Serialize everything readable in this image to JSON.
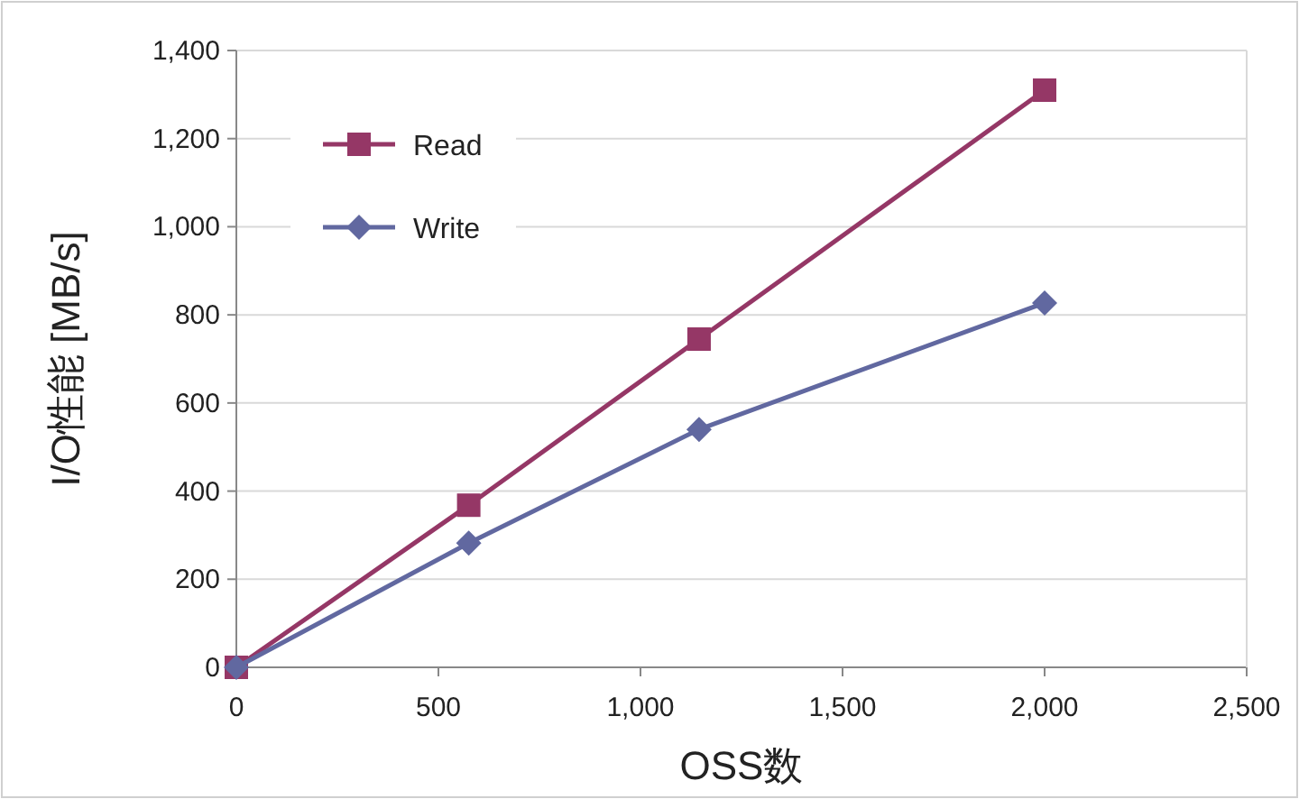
{
  "chart_data": {
    "type": "line",
    "xlabel": "OSS数",
    "ylabel": "I/O性能 [MB/s]",
    "xlim": [
      0,
      2500
    ],
    "xticks": [
      {
        "value": 0,
        "label": "0"
      },
      {
        "value": 500,
        "label": "500"
      },
      {
        "value": 1000,
        "label": "1,000"
      },
      {
        "value": 1500,
        "label": "1,500"
      },
      {
        "value": 2000,
        "label": "2,000"
      },
      {
        "value": 2500,
        "label": "2,500"
      }
    ],
    "ylim": [
      0,
      1400
    ],
    "yticks": [
      {
        "value": 0,
        "label": "0"
      },
      {
        "value": 200,
        "label": "200"
      },
      {
        "value": 400,
        "label": "400"
      },
      {
        "value": 600,
        "label": "600"
      },
      {
        "value": 800,
        "label": "800"
      },
      {
        "value": 1000,
        "label": "1,000"
      },
      {
        "value": 1200,
        "label": "1,200"
      },
      {
        "value": 1400,
        "label": "1,400"
      }
    ],
    "x": [
      0,
      575,
      1145,
      2000
    ],
    "series": [
      {
        "name": "Read",
        "color": "#953766",
        "marker": "square",
        "values": [
          0,
          368,
          745,
          1310
        ]
      },
      {
        "name": "Write",
        "color": "#6168a0",
        "marker": "diamond",
        "values": [
          0,
          282,
          540,
          827
        ]
      }
    ],
    "grid": "y",
    "legend": "top left",
    "line_style": "solid"
  }
}
